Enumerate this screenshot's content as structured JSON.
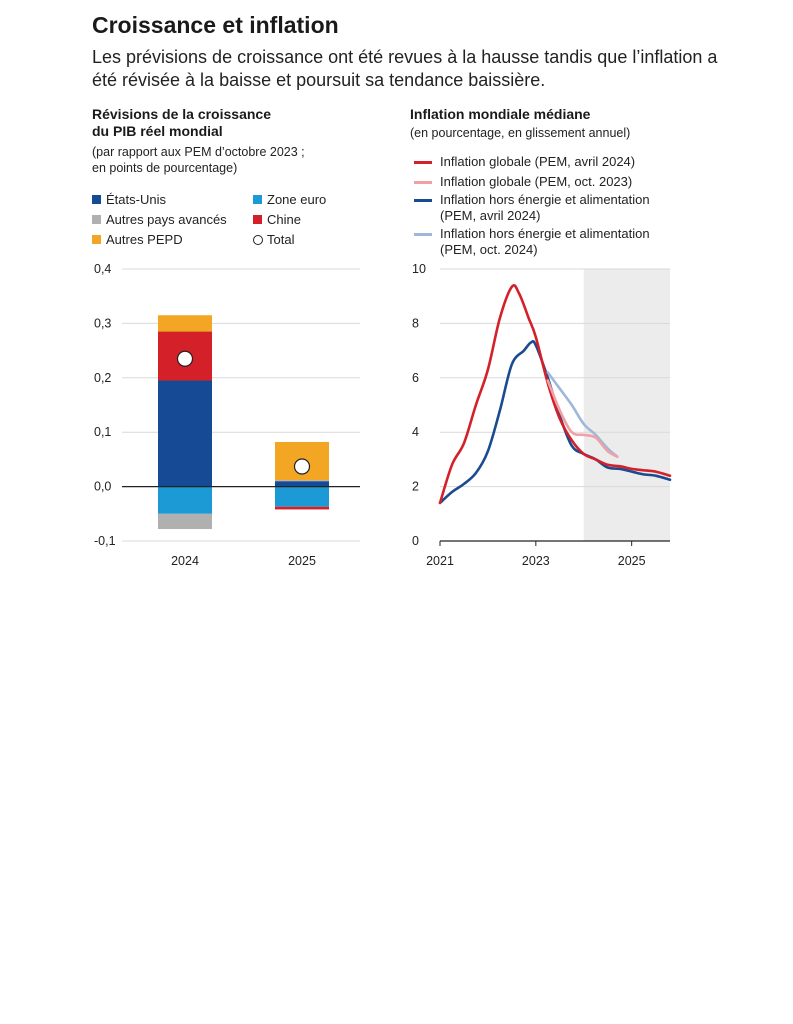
{
  "header": {
    "title": "Croissance et inflation",
    "subtitle": "Les prévisions de croissance ont été revues à la hausse tandis que l’inflation a été révisée à la baisse et poursuit sa tendance baissière."
  },
  "chart_data": [
    {
      "type": "bar",
      "stacked": true,
      "title_line1": "Révisions de la croissance",
      "title_line2": "du PIB réel mondial",
      "subtitle_line1": "(par rapport aux PEM d’octobre 2023 ;",
      "subtitle_line2": "en points de pourcentage)",
      "categories": [
        "2024",
        "2025"
      ],
      "series": [
        {
          "name": "États-Unis",
          "color": "#164a94",
          "values": [
            0.195,
            0.01
          ]
        },
        {
          "name": "Zone euro",
          "color": "#1b9ad6",
          "values": [
            -0.05,
            -0.037
          ]
        },
        {
          "name": "Autres pays avancés",
          "color": "#b0b0b0",
          "values": [
            -0.028,
            0.002
          ]
        },
        {
          "name": "Chine",
          "color": "#d42028",
          "values": [
            0.09,
            -0.005
          ]
        },
        {
          "name": "Autres PEPD",
          "color": "#f2a623",
          "values": [
            0.03,
            0.07
          ]
        }
      ],
      "total": {
        "name": "Total",
        "values": [
          0.235,
          0.037
        ]
      },
      "ylim": [
        -0.1,
        0.4
      ],
      "yticks": [
        "0,4",
        "0,3",
        "0,2",
        "0,1",
        "0,0",
        "-0,1"
      ],
      "grid": true
    },
    {
      "type": "line",
      "title": "Inflation mondiale médiane",
      "subtitle": "(en pourcentage, en glissement annuel)",
      "xlim": [
        2021,
        2025.8
      ],
      "ylim": [
        0,
        10
      ],
      "xticks": [
        "2021",
        "2023",
        "2025"
      ],
      "yticks": [
        "10",
        "8",
        "6",
        "4",
        "2",
        "0"
      ],
      "shaded_from": 2024,
      "series": [
        {
          "name": "Inflation globale (PEM, avril 2024)",
          "color": "#d42028",
          "points": [
            [
              2021,
              1.4
            ],
            [
              2021.25,
              2.8
            ],
            [
              2021.5,
              3.6
            ],
            [
              2021.75,
              5.0
            ],
            [
              2022,
              6.3
            ],
            [
              2022.25,
              8.2
            ],
            [
              2022.5,
              9.35
            ],
            [
              2022.65,
              9.1
            ],
            [
              2022.85,
              8.2
            ],
            [
              2023,
              7.5
            ],
            [
              2023.25,
              5.8
            ],
            [
              2023.5,
              4.5
            ],
            [
              2023.75,
              3.7
            ],
            [
              2024,
              3.2
            ],
            [
              2024.25,
              3.0
            ],
            [
              2024.5,
              2.8
            ],
            [
              2024.75,
              2.75
            ],
            [
              2025,
              2.65
            ],
            [
              2025.25,
              2.6
            ],
            [
              2025.5,
              2.55
            ],
            [
              2025.8,
              2.4
            ]
          ]
        },
        {
          "name": "Inflation globale (PEM, oct. 2023)",
          "color": "#efa1a5",
          "points": [
            [
              2023.25,
              5.9
            ],
            [
              2023.5,
              4.8
            ],
            [
              2023.75,
              4.0
            ],
            [
              2024,
              3.9
            ],
            [
              2024.25,
              3.8
            ],
            [
              2024.5,
              3.3
            ],
            [
              2024.7,
              3.1
            ]
          ]
        },
        {
          "name": "Inflation hors énergie et alimentation (PEM, avril 2024)",
          "color": "#1a4a8f",
          "points": [
            [
              2021,
              1.4
            ],
            [
              2021.25,
              1.8
            ],
            [
              2021.5,
              2.1
            ],
            [
              2021.75,
              2.5
            ],
            [
              2022,
              3.3
            ],
            [
              2022.25,
              4.8
            ],
            [
              2022.5,
              6.5
            ],
            [
              2022.75,
              7.0
            ],
            [
              2022.9,
              7.3
            ],
            [
              2023,
              7.2
            ],
            [
              2023.25,
              6.0
            ],
            [
              2023.5,
              4.6
            ],
            [
              2023.75,
              3.5
            ],
            [
              2024,
              3.2
            ],
            [
              2024.25,
              3.0
            ],
            [
              2024.5,
              2.7
            ],
            [
              2024.75,
              2.65
            ],
            [
              2025,
              2.55
            ],
            [
              2025.25,
              2.45
            ],
            [
              2025.5,
              2.4
            ],
            [
              2025.8,
              2.25
            ]
          ]
        },
        {
          "name": "Inflation hors énergie et alimentation (PEM, oct. 2024)",
          "color": "#9fb8d8",
          "points": [
            [
              2023.25,
              6.2
            ],
            [
              2023.5,
              5.6
            ],
            [
              2023.75,
              5.0
            ],
            [
              2024,
              4.3
            ],
            [
              2024.25,
              3.9
            ],
            [
              2024.5,
              3.4
            ],
            [
              2024.7,
              3.1
            ]
          ]
        }
      ],
      "legend_lines": [
        {
          "text": "Inflation globale (PEM, avril 2024)"
        },
        {
          "text": "Inflation globale (PEM, oct. 2023)"
        },
        {
          "text": "Inflation hors énergie et alimentation",
          "text2": "(PEM, avril 2024)"
        },
        {
          "text": "Inflation hors énergie et alimentation",
          "text2": "(PEM, oct. 2024)"
        }
      ]
    }
  ]
}
